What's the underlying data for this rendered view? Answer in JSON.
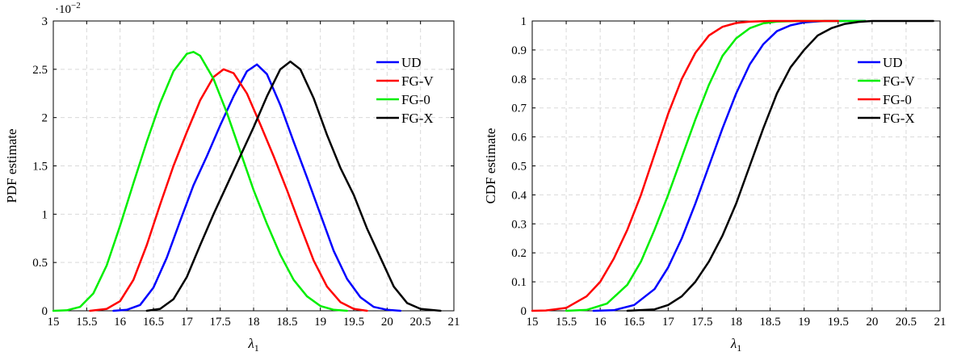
{
  "chart_data": [
    {
      "type": "line",
      "title": "",
      "xlabel": "λ",
      "xlabel_sub": "1",
      "ylabel": "PDF estimate",
      "y_exponent_label": "·10",
      "y_exponent_sup": "−2",
      "xlim": [
        15,
        21
      ],
      "ylim": [
        0,
        3
      ],
      "xticks": [
        "15",
        "15.5",
        "16",
        "16.5",
        "17",
        "17.5",
        "18",
        "18.5",
        "19",
        "19.5",
        "20",
        "20.5",
        "21"
      ],
      "yticks": [
        "0",
        "0.5",
        "1",
        "1.5",
        "2",
        "2.5",
        "3"
      ],
      "grid": true,
      "legend_position": "top-right",
      "series": [
        {
          "name": "UD",
          "color": "#0000ff",
          "points": [
            [
              15.9,
              0
            ],
            [
              16.1,
              0.01
            ],
            [
              16.3,
              0.06
            ],
            [
              16.5,
              0.24
            ],
            [
              16.7,
              0.55
            ],
            [
              16.9,
              0.93
            ],
            [
              17.1,
              1.3
            ],
            [
              17.3,
              1.6
            ],
            [
              17.5,
              1.92
            ],
            [
              17.7,
              2.22
            ],
            [
              17.9,
              2.48
            ],
            [
              18.05,
              2.55
            ],
            [
              18.2,
              2.45
            ],
            [
              18.4,
              2.13
            ],
            [
              18.6,
              1.75
            ],
            [
              18.8,
              1.38
            ],
            [
              19.0,
              1.0
            ],
            [
              19.2,
              0.62
            ],
            [
              19.4,
              0.33
            ],
            [
              19.6,
              0.14
            ],
            [
              19.8,
              0.04
            ],
            [
              20.0,
              0.01
            ],
            [
              20.2,
              0
            ]
          ]
        },
        {
          "name": "FG-V",
          "color": "#ff0000",
          "points": [
            [
              15.55,
              0
            ],
            [
              15.8,
              0.02
            ],
            [
              16.0,
              0.1
            ],
            [
              16.2,
              0.32
            ],
            [
              16.4,
              0.68
            ],
            [
              16.6,
              1.1
            ],
            [
              16.8,
              1.5
            ],
            [
              17.0,
              1.85
            ],
            [
              17.2,
              2.18
            ],
            [
              17.4,
              2.42
            ],
            [
              17.55,
              2.5
            ],
            [
              17.7,
              2.46
            ],
            [
              17.9,
              2.25
            ],
            [
              18.1,
              1.93
            ],
            [
              18.3,
              1.6
            ],
            [
              18.5,
              1.25
            ],
            [
              18.7,
              0.88
            ],
            [
              18.9,
              0.52
            ],
            [
              19.1,
              0.25
            ],
            [
              19.3,
              0.09
            ],
            [
              19.5,
              0.02
            ],
            [
              19.7,
              0
            ]
          ]
        },
        {
          "name": "FG-0",
          "color": "#00ee00",
          "points": [
            [
              15.0,
              0
            ],
            [
              15.2,
              0.005
            ],
            [
              15.4,
              0.04
            ],
            [
              15.6,
              0.18
            ],
            [
              15.8,
              0.47
            ],
            [
              16.0,
              0.88
            ],
            [
              16.2,
              1.32
            ],
            [
              16.4,
              1.75
            ],
            [
              16.6,
              2.15
            ],
            [
              16.8,
              2.48
            ],
            [
              17.0,
              2.66
            ],
            [
              17.1,
              2.68
            ],
            [
              17.2,
              2.64
            ],
            [
              17.4,
              2.4
            ],
            [
              17.6,
              2.05
            ],
            [
              17.8,
              1.65
            ],
            [
              18.0,
              1.25
            ],
            [
              18.2,
              0.9
            ],
            [
              18.4,
              0.58
            ],
            [
              18.6,
              0.32
            ],
            [
              18.8,
              0.15
            ],
            [
              19.0,
              0.05
            ],
            [
              19.2,
              0.01
            ],
            [
              19.4,
              0
            ]
          ]
        },
        {
          "name": "FG-X",
          "color": "#000000",
          "points": [
            [
              16.4,
              0
            ],
            [
              16.6,
              0.02
            ],
            [
              16.8,
              0.12
            ],
            [
              17.0,
              0.35
            ],
            [
              17.2,
              0.68
            ],
            [
              17.4,
              1.0
            ],
            [
              17.6,
              1.3
            ],
            [
              17.8,
              1.6
            ],
            [
              18.0,
              1.9
            ],
            [
              18.2,
              2.22
            ],
            [
              18.4,
              2.5
            ],
            [
              18.55,
              2.58
            ],
            [
              18.7,
              2.5
            ],
            [
              18.9,
              2.2
            ],
            [
              19.1,
              1.82
            ],
            [
              19.3,
              1.48
            ],
            [
              19.5,
              1.2
            ],
            [
              19.7,
              0.85
            ],
            [
              19.9,
              0.55
            ],
            [
              20.1,
              0.25
            ],
            [
              20.3,
              0.08
            ],
            [
              20.5,
              0.02
            ],
            [
              20.8,
              0
            ]
          ]
        }
      ]
    },
    {
      "type": "line",
      "title": "",
      "xlabel": "λ",
      "xlabel_sub": "1",
      "ylabel": "CDF estimate",
      "xlim": [
        15,
        21
      ],
      "ylim": [
        0,
        1
      ],
      "xticks": [
        "15",
        "15.5",
        "16",
        "16.5",
        "17",
        "17.5",
        "18",
        "18.5",
        "19",
        "19.5",
        "20",
        "20.5",
        "21"
      ],
      "yticks": [
        "0",
        "0.1",
        "0.2",
        "0.3",
        "0.4",
        "0.5",
        "0.6",
        "0.7",
        "0.8",
        "0.9",
        "1"
      ],
      "grid": true,
      "legend_position": "top-right",
      "series": [
        {
          "name": "UD",
          "color": "#0000ff",
          "points": [
            [
              15.9,
              0
            ],
            [
              16.2,
              0.002
            ],
            [
              16.5,
              0.02
            ],
            [
              16.8,
              0.075
            ],
            [
              17.0,
              0.15
            ],
            [
              17.2,
              0.25
            ],
            [
              17.4,
              0.37
            ],
            [
              17.6,
              0.5
            ],
            [
              17.8,
              0.63
            ],
            [
              18.0,
              0.75
            ],
            [
              18.2,
              0.85
            ],
            [
              18.4,
              0.92
            ],
            [
              18.6,
              0.965
            ],
            [
              18.8,
              0.985
            ],
            [
              19.0,
              0.995
            ],
            [
              19.3,
              1
            ],
            [
              19.9,
              1
            ]
          ]
        },
        {
          "name": "FG-V",
          "color": "#00ee00",
          "points": [
            [
              15.5,
              0
            ],
            [
              15.8,
              0.003
            ],
            [
              16.1,
              0.025
            ],
            [
              16.4,
              0.09
            ],
            [
              16.6,
              0.17
            ],
            [
              16.8,
              0.28
            ],
            [
              17.0,
              0.4
            ],
            [
              17.2,
              0.53
            ],
            [
              17.4,
              0.66
            ],
            [
              17.6,
              0.78
            ],
            [
              17.8,
              0.88
            ],
            [
              18.0,
              0.94
            ],
            [
              18.2,
              0.975
            ],
            [
              18.4,
              0.992
            ],
            [
              18.6,
              0.998
            ],
            [
              18.9,
              1
            ],
            [
              19.9,
              1
            ]
          ]
        },
        {
          "name": "FG-0",
          "color": "#ff0000",
          "points": [
            [
              15.0,
              0
            ],
            [
              15.2,
              0.001
            ],
            [
              15.5,
              0.01
            ],
            [
              15.8,
              0.05
            ],
            [
              16.0,
              0.1
            ],
            [
              16.2,
              0.18
            ],
            [
              16.4,
              0.28
            ],
            [
              16.6,
              0.4
            ],
            [
              16.8,
              0.54
            ],
            [
              17.0,
              0.68
            ],
            [
              17.2,
              0.8
            ],
            [
              17.4,
              0.89
            ],
            [
              17.6,
              0.95
            ],
            [
              17.8,
              0.98
            ],
            [
              18.0,
              0.993
            ],
            [
              18.2,
              0.998
            ],
            [
              18.5,
              1
            ],
            [
              19.5,
              1
            ]
          ]
        },
        {
          "name": "FG-X",
          "color": "#000000",
          "points": [
            [
              16.4,
              0
            ],
            [
              16.8,
              0.005
            ],
            [
              17.0,
              0.02
            ],
            [
              17.2,
              0.05
            ],
            [
              17.4,
              0.1
            ],
            [
              17.6,
              0.17
            ],
            [
              17.8,
              0.26
            ],
            [
              18.0,
              0.37
            ],
            [
              18.2,
              0.5
            ],
            [
              18.4,
              0.63
            ],
            [
              18.6,
              0.75
            ],
            [
              18.8,
              0.84
            ],
            [
              19.0,
              0.9
            ],
            [
              19.2,
              0.95
            ],
            [
              19.4,
              0.975
            ],
            [
              19.6,
              0.99
            ],
            [
              19.8,
              0.997
            ],
            [
              20.0,
              1
            ],
            [
              20.9,
              1
            ]
          ]
        }
      ]
    }
  ]
}
